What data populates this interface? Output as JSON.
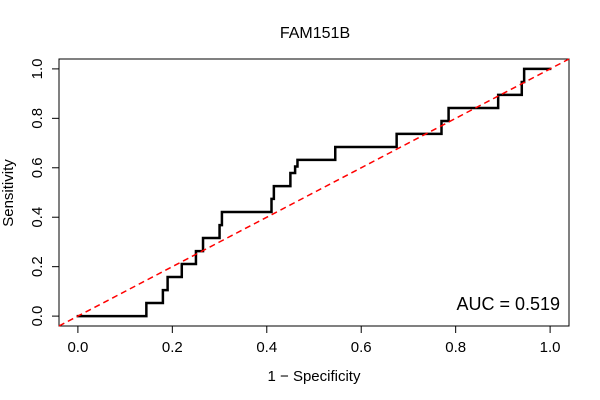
{
  "chart_data": {
    "type": "line",
    "title": "FAM151B",
    "xlabel": "1 − Specificity",
    "ylabel": "Sensitivity",
    "xlim": [
      -0.04,
      1.04
    ],
    "ylim": [
      -0.04,
      1.04
    ],
    "x_ticks": [
      0.0,
      0.2,
      0.4,
      0.6,
      0.8,
      1.0
    ],
    "x_tick_labels": [
      "0.0",
      "0.2",
      "0.4",
      "0.6",
      "0.8",
      "1.0"
    ],
    "y_ticks": [
      0.0,
      0.2,
      0.4,
      0.6,
      0.8,
      1.0
    ],
    "y_tick_labels": [
      "0.0",
      "0.2",
      "0.4",
      "0.6",
      "0.8",
      "1.0"
    ],
    "grid": false,
    "annotation": "AUC = 0.519",
    "annotation_position": "bottom-right",
    "series": [
      {
        "name": "ROC curve",
        "color": "#000000",
        "style": "solid",
        "x": [
          0.0,
          0.145,
          0.145,
          0.18,
          0.18,
          0.19,
          0.19,
          0.22,
          0.22,
          0.25,
          0.25,
          0.265,
          0.265,
          0.3,
          0.3,
          0.305,
          0.305,
          0.41,
          0.41,
          0.415,
          0.415,
          0.45,
          0.45,
          0.46,
          0.46,
          0.465,
          0.465,
          0.545,
          0.545,
          0.675,
          0.675,
          0.77,
          0.77,
          0.785,
          0.785,
          0.89,
          0.89,
          0.94,
          0.94,
          0.945,
          0.945,
          1.0
        ],
        "y": [
          0.0,
          0.0,
          0.053,
          0.053,
          0.105,
          0.105,
          0.158,
          0.158,
          0.211,
          0.211,
          0.263,
          0.263,
          0.316,
          0.316,
          0.368,
          0.368,
          0.421,
          0.421,
          0.474,
          0.474,
          0.526,
          0.526,
          0.579,
          0.579,
          0.605,
          0.605,
          0.632,
          0.632,
          0.684,
          0.684,
          0.737,
          0.737,
          0.789,
          0.789,
          0.842,
          0.842,
          0.895,
          0.895,
          0.947,
          0.947,
          1.0,
          1.0
        ]
      },
      {
        "name": "Reference diagonal",
        "color": "#ff0000",
        "style": "dashed",
        "x": [
          -0.04,
          1.04
        ],
        "y": [
          -0.04,
          1.04
        ]
      }
    ]
  }
}
